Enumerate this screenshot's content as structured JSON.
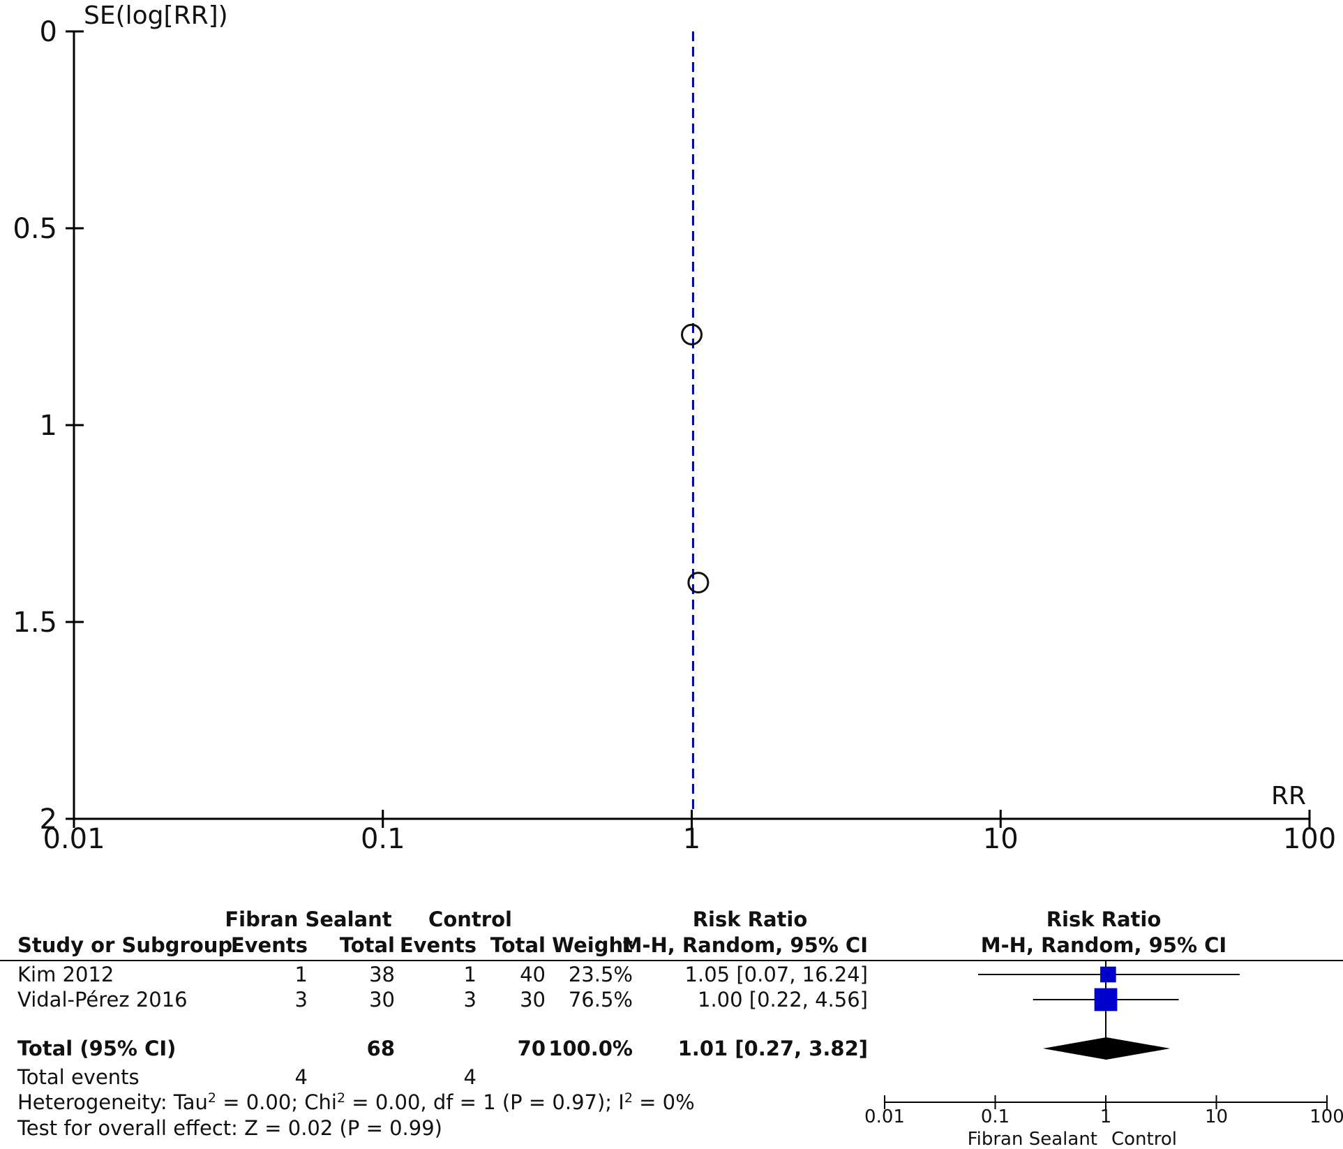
{
  "chart_data": [
    {
      "type": "scatter",
      "ylabel": "SE(log[RR])",
      "xlabel": "RR",
      "x_scale": "log",
      "y_reversed": true,
      "xlim": [
        0.01,
        100
      ],
      "ylim": [
        0,
        2
      ],
      "x_ticks": [
        "0.01",
        "0.1",
        "1",
        "10",
        "100"
      ],
      "y_ticks": [
        "0",
        "0.5",
        "1",
        "1.5",
        "2"
      ],
      "reference_rr": 1.01,
      "points": [
        {
          "x": 1.0,
          "y": 0.77
        },
        {
          "x": 1.05,
          "y": 1.4
        }
      ],
      "colors": {
        "reference_line": "#0000aa",
        "points": "#111111"
      }
    },
    {
      "type": "table",
      "headers": {
        "group1": "Fibran Sealant",
        "group2": "Control",
        "effect": "Risk Ratio",
        "method": "M-H, Random, 95% CI",
        "study": "Study or Subgroup",
        "events": "Events",
        "total": "Total",
        "weight": "Weight"
      },
      "studies": [
        {
          "name": "Kim 2012",
          "events1": "1",
          "total1": "38",
          "events2": "1",
          "total2": "40",
          "weight": "23.5%",
          "ci": "1.05 [0.07, 16.24]",
          "rr": 1.05,
          "lo": 0.07,
          "hi": 16.24,
          "w": 23.5
        },
        {
          "name": "Vidal-Pérez 2016",
          "events1": "3",
          "total1": "30",
          "events2": "3",
          "total2": "30",
          "weight": "76.5%",
          "ci": "1.00 [0.22, 4.56]",
          "rr": 1.0,
          "lo": 0.22,
          "hi": 4.56,
          "w": 76.5
        }
      ],
      "total": {
        "name": "Total (95% CI)",
        "total1": "68",
        "total2": "70",
        "weight": "100.0%",
        "ci": "1.01 [0.27, 3.82]",
        "rr": 1.01,
        "lo": 0.27,
        "hi": 3.82
      },
      "total_events": {
        "label": "Total events",
        "events1": "4",
        "events2": "4"
      },
      "heterogeneity": {
        "prefix": "Heterogeneity: Tau",
        "chi": "; Chi",
        "stats": " = 0.00, df = 1 (P = 0.97); I",
        "tau_val": " = 0.00",
        "i_val": " = 0%",
        "sup": "2"
      },
      "overall_effect": "Test for overall effect: Z = 0.02 (P = 0.99)",
      "forest_ticks": [
        "0.01",
        "0.1",
        "1",
        "10",
        "100"
      ],
      "favours": {
        "left": "Fibran Sealant",
        "right": "Control"
      },
      "colors": {
        "study_marker": "#0000cc",
        "diamond": "#000000"
      }
    }
  ]
}
